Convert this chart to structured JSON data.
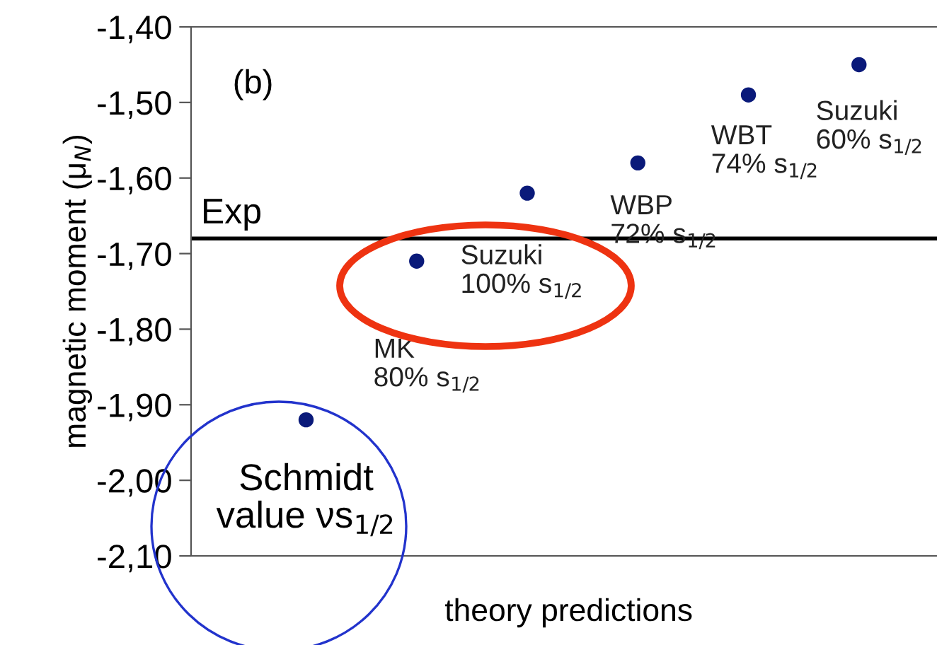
{
  "chart_data": {
    "type": "scatter",
    "ylabel": "magnetic moment (μ$_{N}$)",
    "xlabel": "theory predictions",
    "categories": [
      null,
      null,
      null,
      null,
      null,
      null
    ],
    "values": [
      -1.92,
      -1.71,
      -1.62,
      -1.58,
      -1.49,
      -1.45
    ],
    "value_labels": [
      "Schmidt\nvalue νs$_{1/2}$",
      "MK\n80% s$_{1/2}$",
      "Suzuki\n100% s$_{1/2}$",
      "WBP\n72% s$_{1/2}$",
      "WBT\n74% s$_{1/2}$",
      "Suzuki\n60% s$_{1/2}$"
    ],
    "color": "#0a1a7a",
    "marker": "circle",
    "ylim": [
      -2.1,
      -1.4
    ],
    "yticks": [
      {
        "value": -2.1,
        "label": "-2,10"
      },
      {
        "value": -2.0,
        "label": "-2,00"
      },
      {
        "value": -1.9,
        "label": "-1,90"
      },
      {
        "value": -1.8,
        "label": "-1,80"
      },
      {
        "value": -1.7,
        "label": "-1,70"
      },
      {
        "value": -1.6,
        "label": "-1,60"
      },
      {
        "value": -1.5,
        "label": "-1,50"
      },
      {
        "value": -1.4,
        "label": "-1,40"
      }
    ],
    "ref_lines": [
      {
        "axis": "y",
        "value": -1.68,
        "label": "Exp",
        "color": "#000000"
      }
    ],
    "annotations": [
      "(b)"
    ],
    "grid": false
  }
}
